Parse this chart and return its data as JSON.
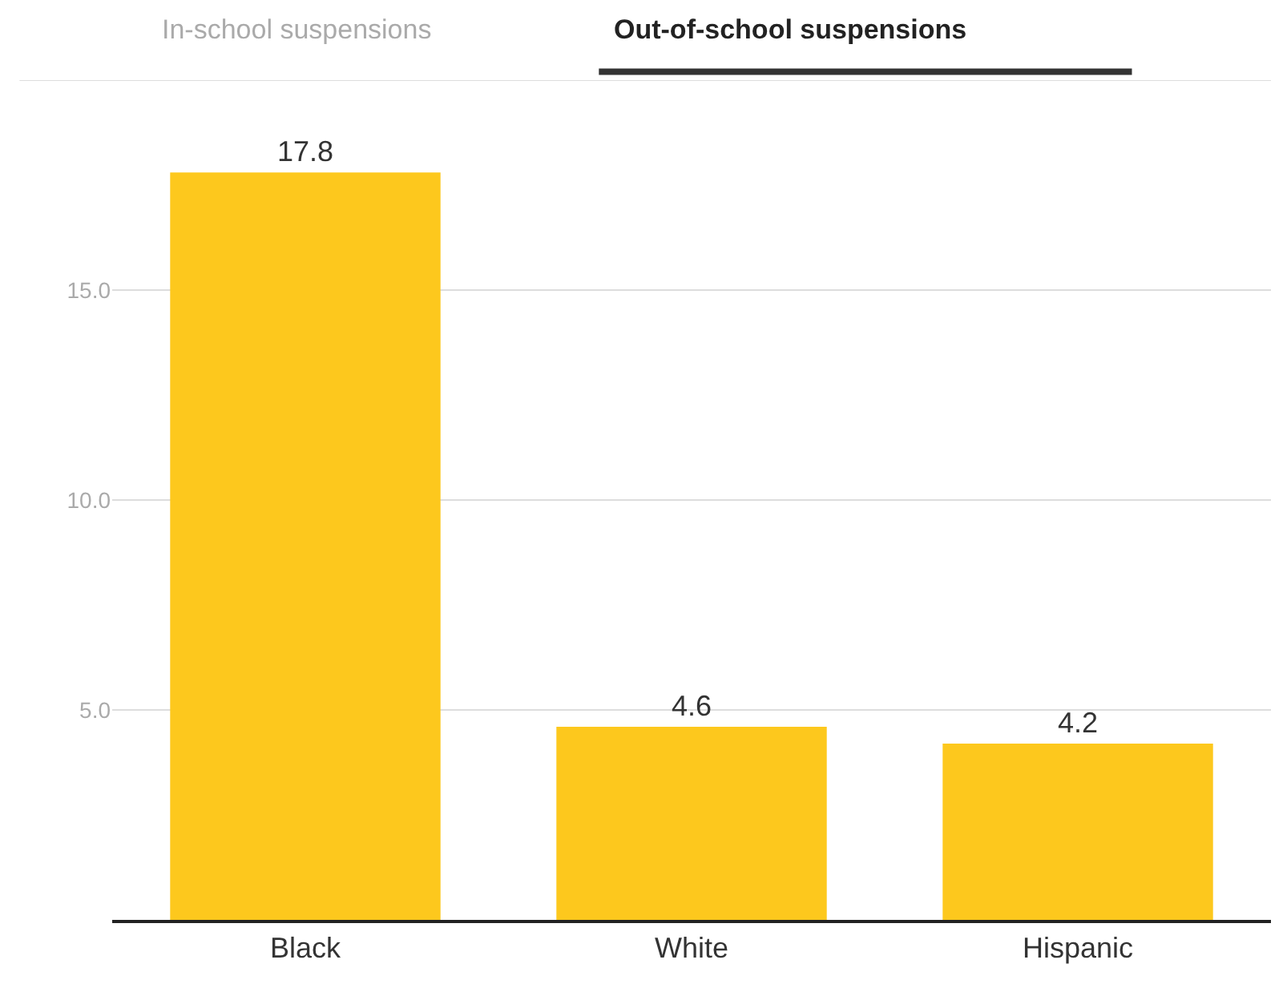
{
  "chart_data": {
    "type": "bar",
    "annotations": [
      "In-school suspensions",
      "Out-of-school suspensions"
    ],
    "categories": [
      "Black",
      "White",
      "Hispanic"
    ],
    "values": [
      17.8,
      4.6,
      4.2
    ],
    "color": "#fdc81d",
    "data_labels": true,
    "ylim": [
      0,
      20
    ],
    "yticks": [
      {
        "value": 5,
        "label": "5.0"
      },
      {
        "value": 10,
        "label": "10.0"
      },
      {
        "value": 15,
        "label": "15.0"
      }
    ],
    "grid": "y",
    "legend": false
  }
}
